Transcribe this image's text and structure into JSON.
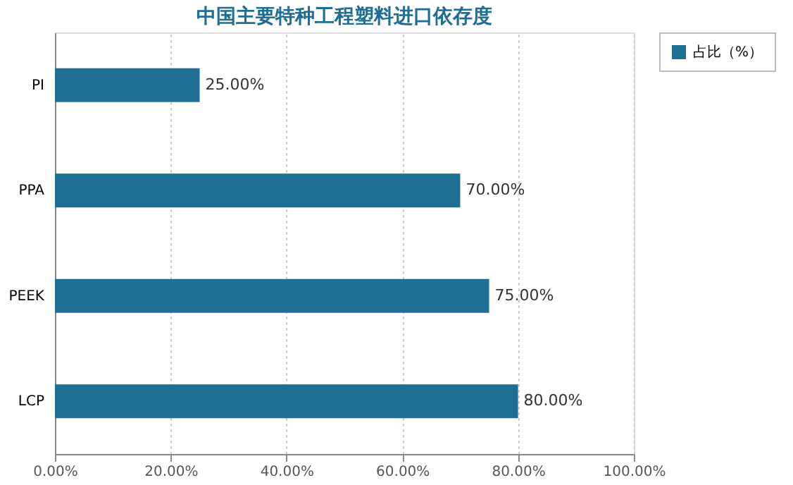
{
  "chart_data": {
    "type": "bar",
    "orientation": "horizontal",
    "title": "中国主要特种工程塑料进口依存度",
    "categories": [
      "PI",
      "PPA",
      "PEEK",
      "LCP"
    ],
    "series": [
      {
        "name": "占比（%）",
        "color": "#1f6e94",
        "values": [
          25,
          70,
          75,
          80
        ],
        "value_labels": [
          "25.00%",
          "70.00%",
          "75.00%",
          "80.00%"
        ]
      }
    ],
    "xlim": [
      0,
      100
    ],
    "xticks": [
      {
        "value": 0,
        "label": "0.00%"
      },
      {
        "value": 20,
        "label": "20.00%"
      },
      {
        "value": 40,
        "label": "40.00%"
      },
      {
        "value": 60,
        "label": "60.00%"
      },
      {
        "value": 80,
        "label": "80.00%"
      },
      {
        "value": 100,
        "label": "100.00%"
      }
    ],
    "grid": "x",
    "legend": "right"
  }
}
